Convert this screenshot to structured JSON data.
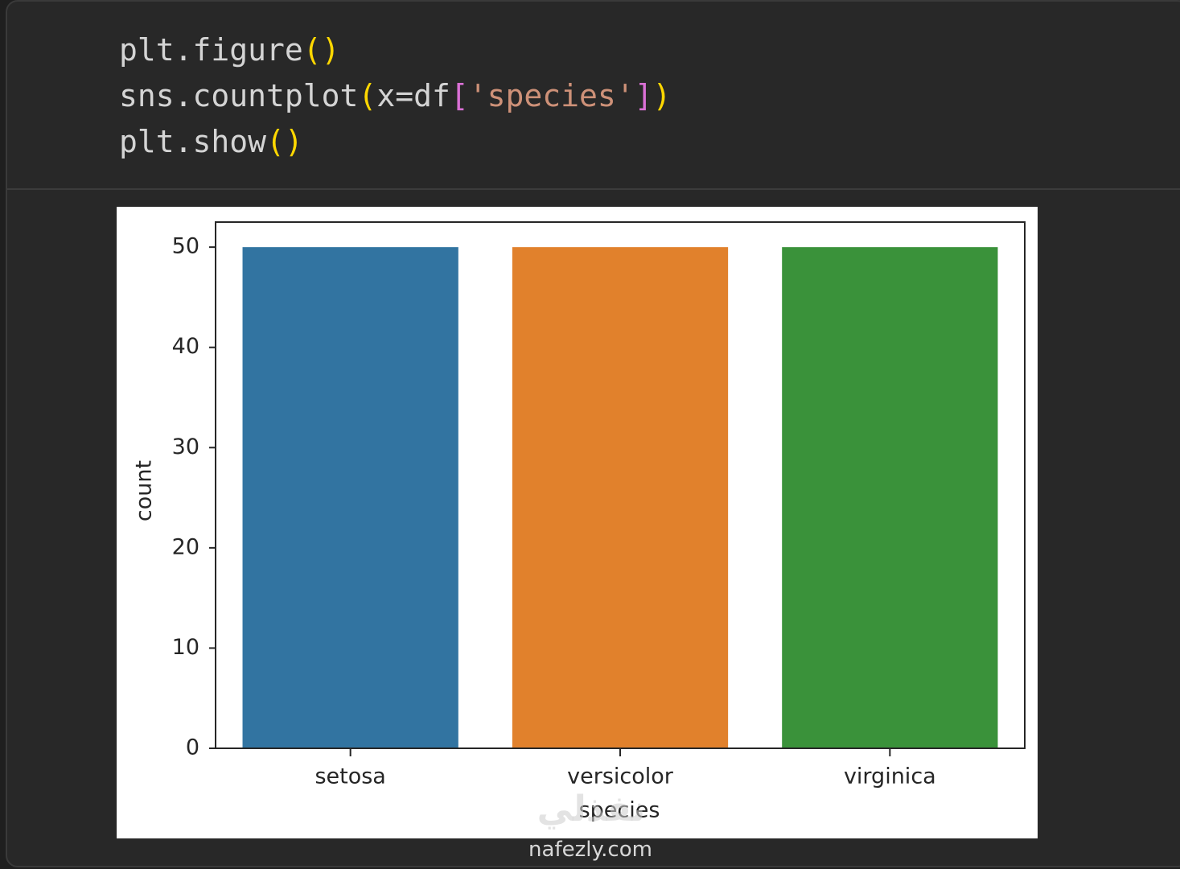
{
  "code": {
    "lines": [
      [
        "plt.figure",
        "(",
        ")"
      ],
      [
        "sns.countplot",
        "(",
        "x=df",
        "[",
        "'species'",
        "]",
        ")"
      ],
      [
        "plt.show",
        "(",
        ")"
      ]
    ]
  },
  "chart_data": {
    "type": "bar",
    "categories": [
      "setosa",
      "versicolor",
      "virginica"
    ],
    "values": [
      50,
      50,
      50
    ],
    "colors": [
      "#3274a1",
      "#e1812c",
      "#3a923a"
    ],
    "xlabel": "species",
    "ylabel": "count",
    "ylim": [
      0,
      52.5
    ],
    "yticks": [
      0,
      10,
      20,
      30,
      40,
      50
    ],
    "grid": false
  },
  "watermark": {
    "logo": "نفذلي",
    "url": "nafezly.com"
  }
}
